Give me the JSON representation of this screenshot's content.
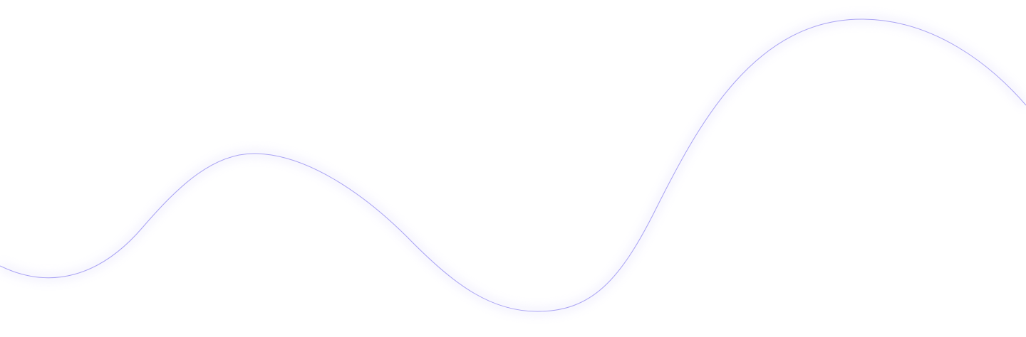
{
  "background_color": "#ffffff",
  "wave": {
    "stroke_color": "#a9a3f3",
    "glow_color": "#d8d4fb"
  }
}
